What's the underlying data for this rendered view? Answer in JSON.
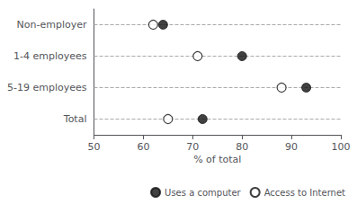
{
  "chart_data": {
    "type": "scatter",
    "categories": [
      "Non-employer",
      "1-4 employees",
      "5-19 employees",
      "Total"
    ],
    "series": [
      {
        "name": "Uses a computer",
        "color": "#111111",
        "marker": "filled",
        "values": [
          64,
          80,
          93,
          72
        ]
      },
      {
        "name": "Access to Internet",
        "color": "#111111",
        "marker": "open",
        "values": [
          62,
          71,
          88,
          65
        ]
      }
    ],
    "xlabel": "% of total",
    "xlim": [
      50,
      100
    ],
    "xticks": [
      50,
      60,
      70,
      80,
      90,
      100
    ],
    "grid": true,
    "legend": "lower right"
  }
}
